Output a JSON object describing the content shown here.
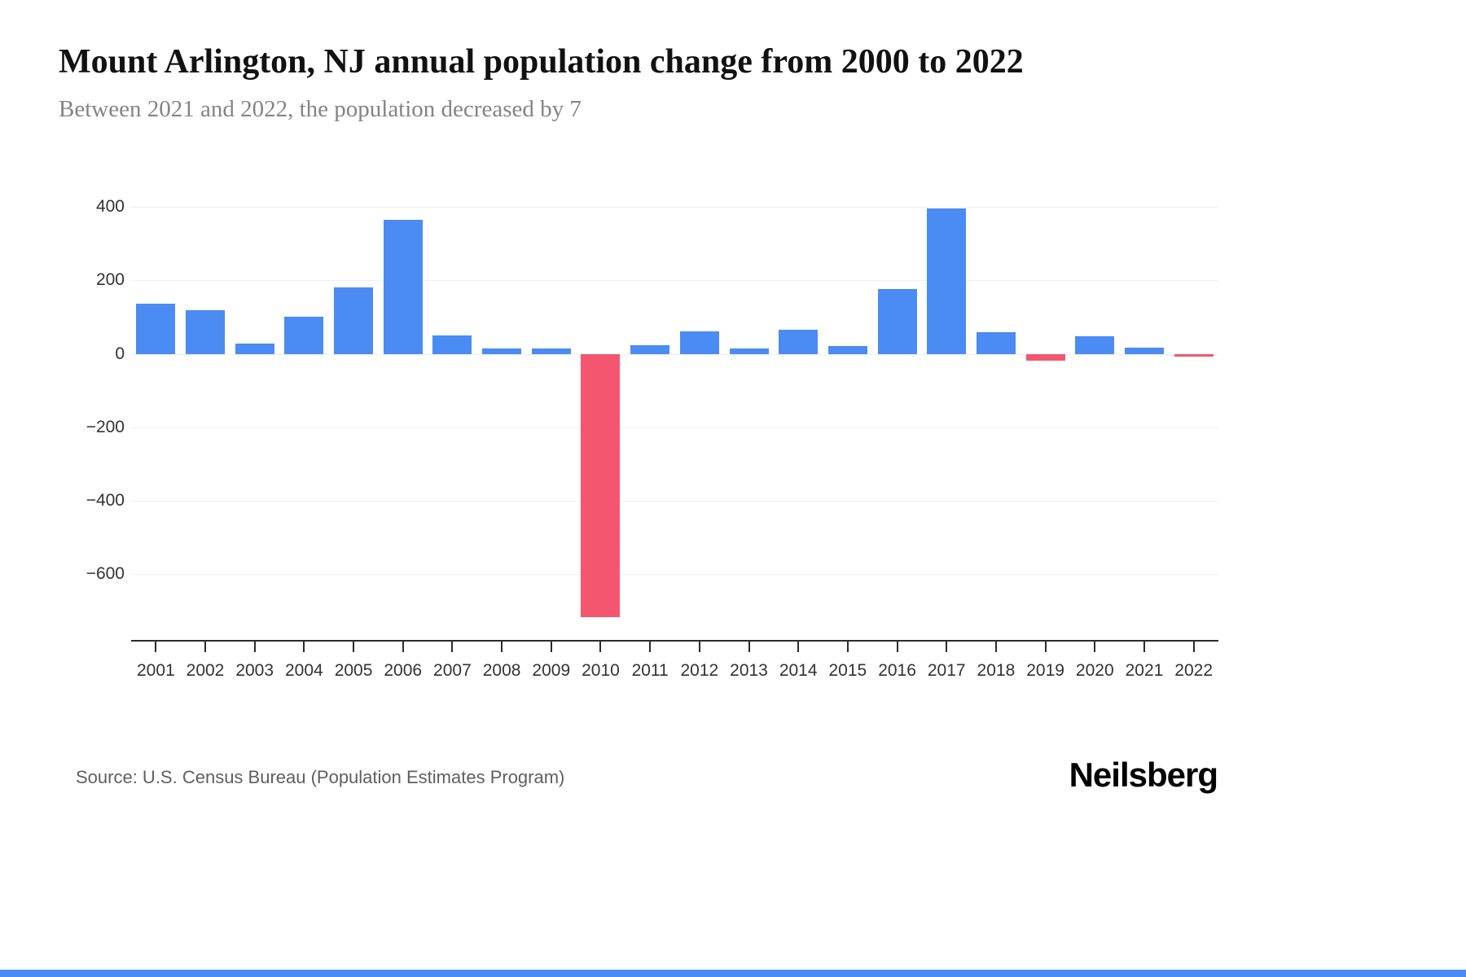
{
  "chart_data": {
    "type": "bar",
    "title": "Mount Arlington, NJ annual population change from 2000 to 2022",
    "subtitle": "Between 2021 and 2022, the population decreased by 7",
    "categories": [
      "2001",
      "2002",
      "2003",
      "2004",
      "2005",
      "2006",
      "2007",
      "2008",
      "2009",
      "2010",
      "2011",
      "2012",
      "2013",
      "2014",
      "2015",
      "2016",
      "2017",
      "2018",
      "2019",
      "2020",
      "2021",
      "2022"
    ],
    "values": [
      138,
      120,
      30,
      103,
      181,
      365,
      52,
      15,
      15,
      -715,
      25,
      62,
      16,
      66,
      22,
      177,
      397,
      60,
      -18,
      48,
      18,
      -7
    ],
    "xlabel": "",
    "ylabel": "",
    "yticks": [
      400,
      200,
      0,
      -200,
      -400,
      -600
    ],
    "ylim": [
      -780,
      450
    ],
    "grid": "horizontal-light",
    "legend": "none",
    "positive_color": "#4b8bf4",
    "negative_color": "#f4566f"
  },
  "footer": {
    "source": "Source: U.S. Census Bureau (Population Estimates Program)",
    "brand": "Neilsberg"
  },
  "accent_color": "#4b8bf4"
}
